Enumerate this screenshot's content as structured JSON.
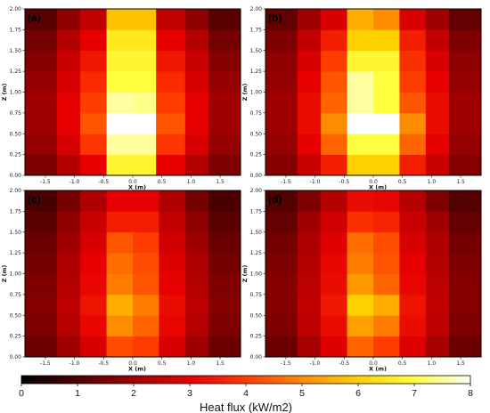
{
  "chart_data": [
    {
      "type": "heatmap",
      "panel_label": "(a)",
      "xlabel": "X (m)",
      "ylabel": "Z (m)",
      "xlim": [
        -1.85,
        1.85
      ],
      "ylim": [
        0,
        2
      ],
      "x_ticks": [
        "-1.5",
        "-1.0",
        "-0.5",
        "0.0",
        "0.5",
        "1.0",
        "1.5"
      ],
      "y_ticks": [
        "0.00",
        "0.25",
        "0.50",
        "0.75",
        "1.00",
        "1.25",
        "1.50",
        "1.75",
        "2.00"
      ],
      "x_edges": [
        -1.85,
        -1.3,
        -0.9,
        -0.45,
        0.0,
        0.4,
        0.9,
        1.3,
        1.85
      ],
      "y_edges": [
        0,
        0.25,
        0.5,
        0.75,
        1.0,
        1.25,
        1.5,
        1.75,
        2.0
      ],
      "values": [
        [
          1.6,
          2.3,
          3.0,
          6.8,
          6.8,
          3.0,
          2.3,
          1.6
        ],
        [
          1.9,
          2.8,
          3.9,
          7.5,
          7.5,
          3.9,
          2.8,
          1.9
        ],
        [
          2.0,
          3.0,
          4.3,
          8.0,
          8.0,
          4.3,
          3.0,
          2.0
        ],
        [
          2.0,
          3.0,
          4.0,
          7.5,
          7.4,
          4.0,
          3.0,
          2.0
        ],
        [
          1.9,
          2.8,
          3.7,
          7.0,
          7.0,
          3.7,
          2.8,
          1.9
        ],
        [
          1.7,
          2.6,
          3.4,
          6.8,
          6.8,
          3.4,
          2.6,
          1.7
        ],
        [
          1.5,
          2.3,
          3.0,
          6.5,
          6.5,
          3.0,
          2.3,
          1.5
        ],
        [
          1.2,
          1.8,
          2.5,
          5.8,
          5.8,
          2.5,
          1.8,
          1.2
        ]
      ]
    },
    {
      "type": "heatmap",
      "panel_label": "(b)",
      "xlabel": "X (m)",
      "ylabel": "Z (m)",
      "xlim": [
        -1.85,
        1.85
      ],
      "ylim": [
        0,
        2
      ],
      "x_ticks": [
        "-1.5",
        "-1.0",
        "-0.5",
        "0.0",
        "0.5",
        "1.0",
        "1.5"
      ],
      "y_ticks": [
        "0.00",
        "0.25",
        "0.50",
        "0.75",
        "1.00",
        "1.25",
        "1.50",
        "1.75",
        "2.00"
      ],
      "x_edges": [
        -1.85,
        -1.3,
        -0.9,
        -0.45,
        0.0,
        0.45,
        0.9,
        1.3,
        1.85
      ],
      "y_edges": [
        0,
        0.25,
        0.5,
        0.75,
        1.0,
        1.25,
        1.5,
        1.75,
        2.0
      ],
      "values": [
        [
          1.7,
          2.6,
          3.5,
          6.0,
          6.0,
          3.5,
          2.6,
          1.7
        ],
        [
          1.9,
          3.0,
          4.5,
          7.0,
          7.0,
          4.5,
          3.0,
          1.9
        ],
        [
          2.0,
          3.2,
          5.0,
          8.0,
          8.0,
          5.0,
          3.2,
          2.0
        ],
        [
          2.0,
          3.2,
          4.5,
          7.5,
          7.0,
          4.3,
          3.2,
          2.0
        ],
        [
          1.9,
          3.0,
          4.3,
          7.5,
          7.0,
          4.0,
          3.0,
          1.9
        ],
        [
          1.8,
          2.8,
          4.0,
          6.8,
          6.8,
          3.8,
          2.8,
          1.8
        ],
        [
          1.6,
          2.5,
          3.5,
          6.0,
          6.0,
          3.5,
          2.5,
          1.6
        ],
        [
          1.3,
          2.0,
          2.8,
          5.5,
          5.0,
          2.8,
          2.0,
          1.3
        ]
      ]
    },
    {
      "type": "heatmap",
      "panel_label": "(c)",
      "xlabel": "X (m)",
      "ylabel": "Z (m)",
      "xlim": [
        -1.85,
        1.85
      ],
      "ylim": [
        0,
        2
      ],
      "x_ticks": [
        "-1.5",
        "-1.0",
        "-0.5",
        "0.0",
        "0.5",
        "1.0",
        "1.5"
      ],
      "y_ticks": [
        "0.00",
        "0.25",
        "0.50",
        "0.75",
        "1.00",
        "1.25",
        "1.50",
        "1.75",
        "2.00"
      ],
      "x_edges": [
        -1.85,
        -1.3,
        -0.9,
        -0.45,
        0.0,
        0.45,
        0.9,
        1.3,
        1.85
      ],
      "y_edges": [
        0,
        0.25,
        0.5,
        0.75,
        1.0,
        1.25,
        1.5,
        1.75,
        2.0
      ],
      "values": [
        [
          1.4,
          2.0,
          2.8,
          4.2,
          4.0,
          2.8,
          2.0,
          1.4
        ],
        [
          1.6,
          2.3,
          3.1,
          5.0,
          4.5,
          3.1,
          2.3,
          1.6
        ],
        [
          1.7,
          2.4,
          3.3,
          5.5,
          4.8,
          3.2,
          2.4,
          1.7
        ],
        [
          1.6,
          2.3,
          3.1,
          4.8,
          4.3,
          3.0,
          2.3,
          1.6
        ],
        [
          1.5,
          2.2,
          3.0,
          4.6,
          4.2,
          2.9,
          2.2,
          1.5
        ],
        [
          1.4,
          2.0,
          2.8,
          4.3,
          4.0,
          2.7,
          2.0,
          1.4
        ],
        [
          1.2,
          1.8,
          2.6,
          3.5,
          3.5,
          2.5,
          1.8,
          1.2
        ],
        [
          1.0,
          1.5,
          2.2,
          3.0,
          3.0,
          2.2,
          1.5,
          1.0
        ]
      ]
    },
    {
      "type": "heatmap",
      "panel_label": "(d)",
      "xlabel": "X (m)",
      "ylabel": "Z (m)",
      "xlim": [
        -1.85,
        1.85
      ],
      "ylim": [
        0,
        2
      ],
      "x_ticks": [
        "-1.5",
        "-1.0",
        "-0.5",
        "0.0",
        "0.5",
        "1.0",
        "1.5"
      ],
      "y_ticks": [
        "0.00",
        "0.25",
        "0.50",
        "0.75",
        "1.00",
        "1.25",
        "1.50",
        "1.75",
        "2.00"
      ],
      "x_edges": [
        -1.85,
        -1.3,
        -0.9,
        -0.45,
        0.0,
        0.45,
        0.9,
        1.3,
        1.85
      ],
      "y_edges": [
        0,
        0.25,
        0.5,
        0.75,
        1.0,
        1.25,
        1.5,
        1.75,
        2.0
      ],
      "values": [
        [
          1.4,
          2.1,
          2.9,
          4.5,
          4.0,
          2.9,
          2.1,
          1.4
        ],
        [
          1.6,
          2.4,
          3.2,
          5.3,
          4.8,
          3.2,
          2.4,
          1.6
        ],
        [
          1.7,
          2.5,
          3.4,
          6.0,
          5.5,
          3.3,
          2.5,
          1.7
        ],
        [
          1.7,
          2.4,
          3.2,
          5.2,
          4.5,
          3.1,
          2.4,
          1.7
        ],
        [
          1.6,
          2.3,
          3.1,
          4.8,
          4.3,
          3.0,
          2.3,
          1.6
        ],
        [
          1.5,
          2.2,
          2.9,
          4.6,
          4.2,
          2.8,
          2.2,
          1.5
        ],
        [
          1.3,
          2.0,
          2.7,
          3.8,
          3.6,
          2.6,
          2.0,
          1.3
        ],
        [
          1.1,
          1.6,
          2.3,
          3.2,
          3.1,
          2.3,
          1.6,
          1.1
        ]
      ]
    }
  ],
  "colorbar": {
    "label": "Heat flux (kW/m2)",
    "ticks": [
      "0",
      "1",
      "2",
      "3",
      "4",
      "5",
      "6",
      "7",
      "8"
    ],
    "range": [
      0,
      8
    ],
    "colormap": "hot",
    "colors": [
      "#000000",
      "#4a0000",
      "#a00000",
      "#e60000",
      "#ff3c00",
      "#ff8c00",
      "#ffd000",
      "#ffff40",
      "#ffffff"
    ]
  }
}
